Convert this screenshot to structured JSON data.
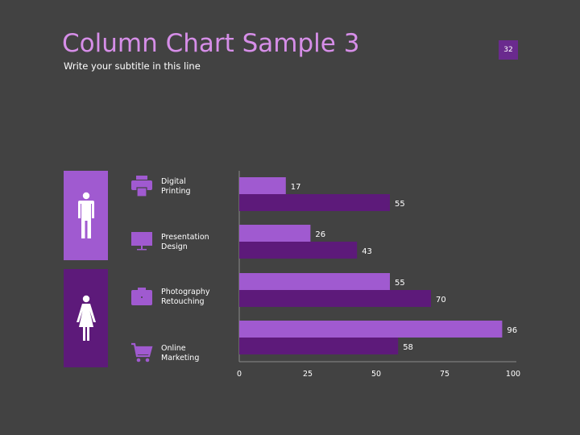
{
  "slide": {
    "title": "Column Chart Sample 3",
    "subtitle": "Write your subtitle in this line",
    "page_number": "32"
  },
  "icons": {
    "male": "male-person-icon",
    "female": "female-person-icon",
    "printer": "printer-icon",
    "monitor": "monitor-icon",
    "camera": "camera-icon",
    "cart": "shopping-cart-icon"
  },
  "colors": {
    "background": "#424242",
    "title": "#d68ee8",
    "series_light": "#a05ad0",
    "series_dark": "#5d1a7a",
    "axis": "#8a8a8a",
    "text": "#ffffff"
  },
  "categories_display": [
    {
      "line1": "Digital",
      "line2": "Printing"
    },
    {
      "line1": "Presentation",
      "line2": "Design"
    },
    {
      "line1": "Photography",
      "line2": "Retouching"
    },
    {
      "line1": "Online",
      "line2": "Marketing"
    }
  ],
  "chart_data": {
    "type": "bar",
    "orientation": "horizontal",
    "categories": [
      "Digital Printing",
      "Presentation Design",
      "Photography Retouching",
      "Online Marketing"
    ],
    "series": [
      {
        "values": [
          17,
          26,
          55,
          96
        ],
        "color": "#a05ad0"
      },
      {
        "values": [
          55,
          43,
          70,
          58
        ],
        "color": "#5d1a7a"
      }
    ],
    "xlim": [
      0,
      100
    ],
    "xticks": [
      "0",
      "25",
      "50",
      "75",
      "100"
    ],
    "grid": false,
    "legend": "none",
    "data_labels": true
  }
}
